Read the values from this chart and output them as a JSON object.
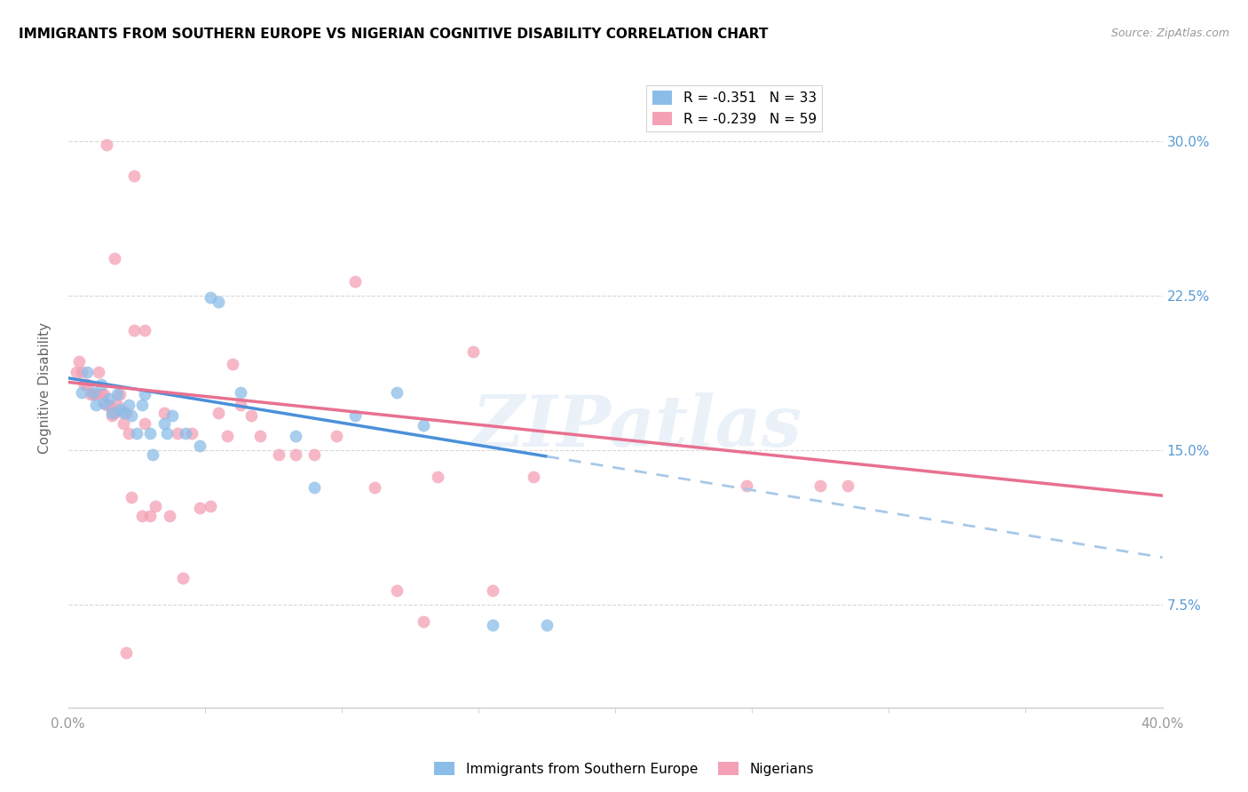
{
  "title": "IMMIGRANTS FROM SOUTHERN EUROPE VS NIGERIAN COGNITIVE DISABILITY CORRELATION CHART",
  "source": "Source: ZipAtlas.com",
  "ylabel": "Cognitive Disability",
  "yticks": [
    "7.5%",
    "15.0%",
    "22.5%",
    "30.0%"
  ],
  "ytick_vals": [
    0.075,
    0.15,
    0.225,
    0.3
  ],
  "xlim": [
    0.0,
    0.4
  ],
  "ylim": [
    0.025,
    0.335
  ],
  "legend_entry1": {
    "R": "-0.351",
    "N": "33",
    "color": "#8bbde8"
  },
  "legend_entry2": {
    "R": "-0.239",
    "N": "59",
    "color": "#f4a0b5"
  },
  "scatter_blue": [
    [
      0.005,
      0.178
    ],
    [
      0.007,
      0.188
    ],
    [
      0.009,
      0.178
    ],
    [
      0.01,
      0.172
    ],
    [
      0.012,
      0.182
    ],
    [
      0.013,
      0.173
    ],
    [
      0.015,
      0.175
    ],
    [
      0.016,
      0.168
    ],
    [
      0.018,
      0.177
    ],
    [
      0.019,
      0.17
    ],
    [
      0.02,
      0.168
    ],
    [
      0.022,
      0.172
    ],
    [
      0.023,
      0.167
    ],
    [
      0.025,
      0.158
    ],
    [
      0.027,
      0.172
    ],
    [
      0.028,
      0.177
    ],
    [
      0.03,
      0.158
    ],
    [
      0.031,
      0.148
    ],
    [
      0.035,
      0.163
    ],
    [
      0.036,
      0.158
    ],
    [
      0.038,
      0.167
    ],
    [
      0.043,
      0.158
    ],
    [
      0.048,
      0.152
    ],
    [
      0.052,
      0.224
    ],
    [
      0.055,
      0.222
    ],
    [
      0.063,
      0.178
    ],
    [
      0.083,
      0.157
    ],
    [
      0.09,
      0.132
    ],
    [
      0.105,
      0.167
    ],
    [
      0.12,
      0.178
    ],
    [
      0.13,
      0.162
    ],
    [
      0.155,
      0.065
    ],
    [
      0.175,
      0.065
    ]
  ],
  "scatter_pink": [
    [
      0.003,
      0.188
    ],
    [
      0.004,
      0.193
    ],
    [
      0.005,
      0.188
    ],
    [
      0.006,
      0.182
    ],
    [
      0.007,
      0.182
    ],
    [
      0.008,
      0.177
    ],
    [
      0.009,
      0.177
    ],
    [
      0.01,
      0.177
    ],
    [
      0.011,
      0.188
    ],
    [
      0.012,
      0.177
    ],
    [
      0.013,
      0.177
    ],
    [
      0.014,
      0.172
    ],
    [
      0.015,
      0.172
    ],
    [
      0.016,
      0.167
    ],
    [
      0.017,
      0.168
    ],
    [
      0.018,
      0.172
    ],
    [
      0.019,
      0.177
    ],
    [
      0.02,
      0.163
    ],
    [
      0.021,
      0.168
    ],
    [
      0.022,
      0.158
    ],
    [
      0.023,
      0.127
    ],
    [
      0.024,
      0.283
    ],
    [
      0.027,
      0.118
    ],
    [
      0.028,
      0.163
    ],
    [
      0.03,
      0.118
    ],
    [
      0.032,
      0.123
    ],
    [
      0.035,
      0.168
    ],
    [
      0.037,
      0.118
    ],
    [
      0.04,
      0.158
    ],
    [
      0.042,
      0.088
    ],
    [
      0.045,
      0.158
    ],
    [
      0.048,
      0.122
    ],
    [
      0.052,
      0.123
    ],
    [
      0.055,
      0.168
    ],
    [
      0.058,
      0.157
    ],
    [
      0.063,
      0.172
    ],
    [
      0.067,
      0.167
    ],
    [
      0.07,
      0.157
    ],
    [
      0.077,
      0.148
    ],
    [
      0.083,
      0.148
    ],
    [
      0.09,
      0.148
    ],
    [
      0.098,
      0.157
    ],
    [
      0.112,
      0.132
    ],
    [
      0.12,
      0.082
    ],
    [
      0.13,
      0.067
    ],
    [
      0.014,
      0.298
    ],
    [
      0.017,
      0.243
    ],
    [
      0.024,
      0.208
    ],
    [
      0.028,
      0.208
    ],
    [
      0.105,
      0.232
    ],
    [
      0.021,
      0.052
    ],
    [
      0.155,
      0.082
    ],
    [
      0.06,
      0.192
    ],
    [
      0.135,
      0.137
    ],
    [
      0.17,
      0.137
    ],
    [
      0.148,
      0.198
    ],
    [
      0.248,
      0.133
    ],
    [
      0.275,
      0.133
    ],
    [
      0.285,
      0.133
    ]
  ],
  "color_blue": "#8bbde8",
  "color_pink": "#f4a0b5",
  "trendline_blue_solid": {
    "x_start": 0.0,
    "y_start": 0.185,
    "x_end": 0.175,
    "y_end": 0.147
  },
  "trendline_blue_dashed": {
    "x_start": 0.175,
    "y_start": 0.147,
    "x_end": 0.4,
    "y_end": 0.098
  },
  "trendline_pink": {
    "x_start": 0.0,
    "y_start": 0.183,
    "x_end": 0.4,
    "y_end": 0.128
  },
  "watermark": "ZIPatlas",
  "legend_label1": "Immigrants from Southern Europe",
  "legend_label2": "Nigerians",
  "xtick_minor_count": 8
}
